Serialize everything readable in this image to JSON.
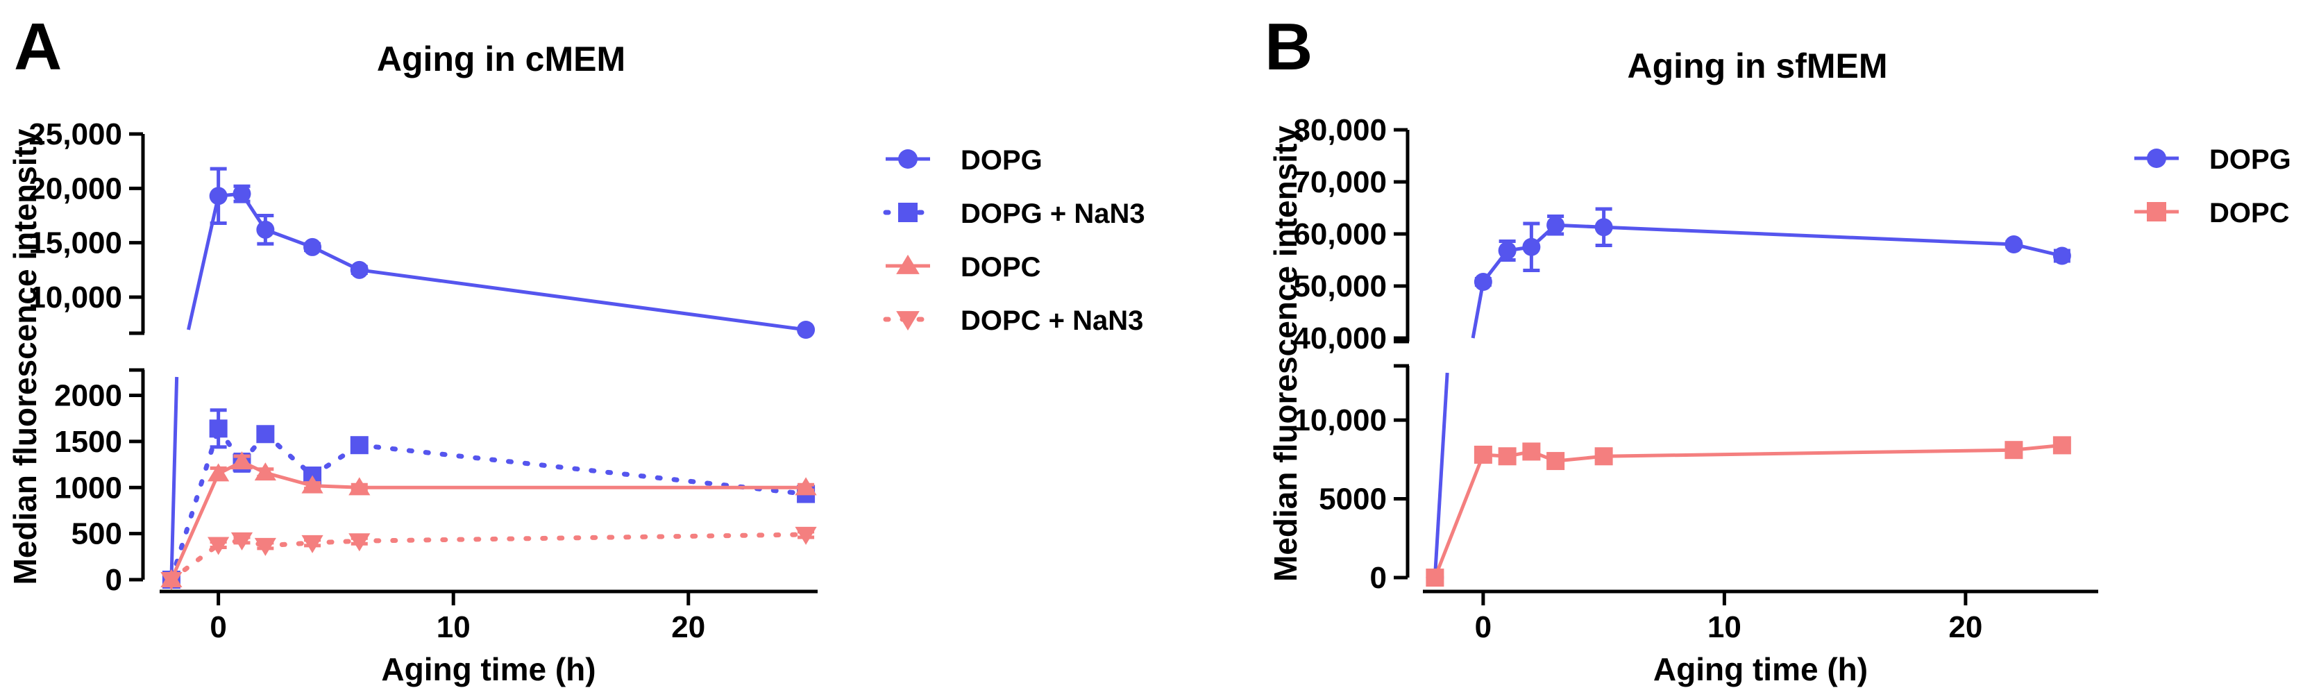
{
  "chart_data": [
    {
      "panel_label": "A",
      "type": "line",
      "title": "Aging in cMEM",
      "xlabel": "Aging time (h)",
      "ylabel": "Median fluorescence intensity",
      "xlim": [
        -2.5,
        25.5
      ],
      "xticks": [
        0,
        10,
        20
      ],
      "xtick_labels": [
        "0",
        "10",
        "20"
      ],
      "y_axis_break": true,
      "ylim_lower": [
        0,
        2200
      ],
      "yticks_lower": [
        0,
        500,
        1000,
        1500,
        2000
      ],
      "ytick_labels_lower": [
        "0",
        "500",
        "1000",
        "1500",
        "2000"
      ],
      "ylim_upper": [
        7000,
        25000
      ],
      "yticks_upper": [
        10000,
        15000,
        20000,
        25000
      ],
      "ytick_labels_upper": [
        "10,000",
        "15,000",
        "20,000",
        "25,000"
      ],
      "legend_position": "right",
      "series": [
        {
          "name": "DOPG",
          "color": "#5555ee",
          "marker": "circle",
          "line": "solid",
          "x": [
            -2,
            0,
            1,
            2,
            4,
            6,
            25
          ],
          "y": [
            0,
            19300,
            19500,
            16200,
            14600,
            12500,
            7000
          ],
          "err": [
            0,
            2500,
            700,
            1300,
            300,
            300,
            200
          ]
        },
        {
          "name": "DOPG + NaN3",
          "color": "#5555ee",
          "marker": "square",
          "line": "dotted",
          "x": [
            -2,
            0,
            1,
            2,
            4,
            6,
            25
          ],
          "y": [
            0,
            1640,
            1270,
            1580,
            1130,
            1460,
            930
          ],
          "err": [
            0,
            200,
            90,
            40,
            70,
            40,
            50
          ]
        },
        {
          "name": "DOPC",
          "color": "#f47f7f",
          "marker": "triangle-up",
          "line": "solid",
          "x": [
            -2,
            0,
            1,
            2,
            4,
            6,
            25
          ],
          "y": [
            0,
            1150,
            1280,
            1160,
            1020,
            1000,
            1000
          ],
          "err": [
            0,
            60,
            60,
            40,
            30,
            30,
            30
          ]
        },
        {
          "name": "DOPC + NaN3",
          "color": "#f47f7f",
          "marker": "triangle-down",
          "line": "dotted",
          "x": [
            -2,
            0,
            1,
            2,
            4,
            6,
            25
          ],
          "y": [
            0,
            380,
            430,
            370,
            400,
            420,
            490
          ],
          "err": [
            0,
            30,
            30,
            30,
            30,
            30,
            30
          ]
        }
      ]
    },
    {
      "panel_label": "B",
      "type": "line",
      "title": "Aging in sfMEM",
      "xlabel": "Aging time (h)",
      "ylabel": "Median fluorescence intensity",
      "xlim": [
        -2.5,
        25.5
      ],
      "xticks": [
        0,
        10,
        20
      ],
      "xtick_labels": [
        "0",
        "10",
        "20"
      ],
      "y_axis_break": true,
      "ylim_lower": [
        0,
        13000
      ],
      "yticks_lower": [
        0,
        5000,
        10000
      ],
      "ytick_labels_lower": [
        "0",
        "5000",
        "10,000"
      ],
      "ylim_upper": [
        40000,
        80000
      ],
      "yticks_upper": [
        40000,
        50000,
        60000,
        70000,
        80000
      ],
      "ytick_labels_upper": [
        "40,000",
        "50,000",
        "60,000",
        "70,000",
        "80,000"
      ],
      "legend_position": "right",
      "series": [
        {
          "name": "DOPG",
          "color": "#5555ee",
          "marker": "circle",
          "line": "solid",
          "x": [
            -2,
            0,
            1,
            2,
            3,
            5,
            22,
            24
          ],
          "y": [
            0,
            50800,
            56800,
            57500,
            61700,
            61300,
            58000,
            55800
          ],
          "err": [
            0,
            600,
            1800,
            4500,
            1700,
            3500,
            500,
            1000
          ]
        },
        {
          "name": "DOPC",
          "color": "#f47f7f",
          "marker": "square",
          "line": "solid",
          "x": [
            -2,
            0,
            1,
            2,
            3,
            5,
            22,
            24
          ],
          "y": [
            0,
            7800,
            7700,
            8000,
            7400,
            7700,
            8100,
            8400
          ],
          "err": [
            0,
            150,
            150,
            200,
            200,
            150,
            150,
            150
          ]
        }
      ]
    }
  ]
}
